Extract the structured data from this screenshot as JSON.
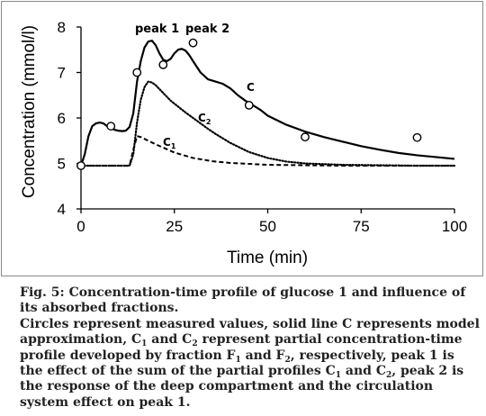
{
  "chart_data": {
    "type": "line",
    "xlabel": "Time (min)",
    "ylabel": "Concentration (mmol/l)",
    "xlim": [
      0,
      100
    ],
    "ylim": [
      4,
      8
    ],
    "xticks": [
      0,
      25,
      50,
      75,
      100
    ],
    "yticks": [
      4,
      5,
      6,
      7,
      8
    ],
    "grid": false,
    "legend": "none",
    "series": [
      {
        "name": "C",
        "style": "solid",
        "x": [
          0,
          1,
          2,
          3,
          4,
          5,
          6,
          7,
          8,
          9,
          10,
          11,
          12,
          13,
          14,
          15,
          16,
          17,
          18,
          19,
          20,
          21,
          22,
          23,
          24,
          25,
          26,
          27,
          28,
          29,
          30,
          32,
          34,
          36,
          38,
          40,
          42,
          44,
          46,
          48,
          50,
          55,
          60,
          65,
          70,
          75,
          80,
          85,
          90,
          95,
          100
        ],
        "values": [
          4.95,
          5.2,
          5.6,
          5.82,
          5.88,
          5.9,
          5.88,
          5.82,
          5.78,
          5.74,
          5.72,
          5.71,
          5.72,
          5.8,
          6.1,
          6.8,
          7.25,
          7.55,
          7.68,
          7.7,
          7.6,
          7.42,
          7.28,
          7.25,
          7.3,
          7.42,
          7.5,
          7.52,
          7.48,
          7.38,
          7.25,
          7.0,
          6.85,
          6.8,
          6.75,
          6.65,
          6.5,
          6.38,
          6.28,
          6.18,
          6.05,
          5.85,
          5.7,
          5.58,
          5.48,
          5.38,
          5.3,
          5.23,
          5.18,
          5.14,
          5.1
        ]
      },
      {
        "name": "C2",
        "style": "dotted",
        "x": [
          0,
          13,
          14,
          15,
          16,
          17,
          18,
          19,
          20,
          22,
          24,
          26,
          28,
          30,
          32,
          34,
          36,
          38,
          40,
          45,
          50,
          55,
          60,
          70,
          80,
          90,
          100
        ],
        "values": [
          4.95,
          4.95,
          5.2,
          5.9,
          6.4,
          6.68,
          6.8,
          6.78,
          6.72,
          6.55,
          6.38,
          6.25,
          6.12,
          6.0,
          5.88,
          5.76,
          5.65,
          5.55,
          5.45,
          5.25,
          5.12,
          5.04,
          5.0,
          4.97,
          4.96,
          4.95,
          4.95
        ]
      },
      {
        "name": "C1",
        "style": "dashed",
        "x": [
          0,
          13,
          14,
          15,
          16,
          18,
          20,
          25,
          30,
          35,
          40,
          50,
          60,
          70,
          80,
          90,
          100
        ],
        "values": [
          4.95,
          4.95,
          5.3,
          5.6,
          5.58,
          5.5,
          5.42,
          5.24,
          5.12,
          5.05,
          5.01,
          4.97,
          4.96,
          4.95,
          4.95,
          4.95,
          4.95
        ]
      }
    ],
    "measured_points": {
      "x": [
        0,
        8,
        15,
        22,
        30,
        45,
        60,
        90
      ],
      "values": [
        4.95,
        5.82,
        7.0,
        7.17,
        7.65,
        6.28,
        5.58,
        5.57
      ]
    },
    "annotations": {
      "peak1": "peak 1",
      "peak2": "peak 2",
      "curve_c": "C",
      "curve_c2": {
        "base": "C",
        "sub": "2"
      },
      "curve_c1": {
        "base": "C",
        "sub": "1"
      }
    }
  },
  "caption": {
    "line1": "Fig. 5: Concentration-time profile of glucose 1 and influence of its absorbed fractions.",
    "line2": "Circles represent measured values, solid line C represents model approximation, C",
    "sub_c1": "1",
    "and_c": " and C",
    "sub_c2": "2",
    "part_profile": " represent partial concentration-time profile developed by fraction F",
    "sub_f1": "1",
    "and_f": " and F",
    "sub_f2": "2",
    "respectively": ", respectively, peak 1 is the effect of the sum of the partial profiles C",
    "sub_c1b": "1",
    "and_c_b": " and C",
    "sub_c2b": "2",
    "ending": ", peak 2 is the response of the deep compartment and the circulation system effect on peak 1."
  }
}
